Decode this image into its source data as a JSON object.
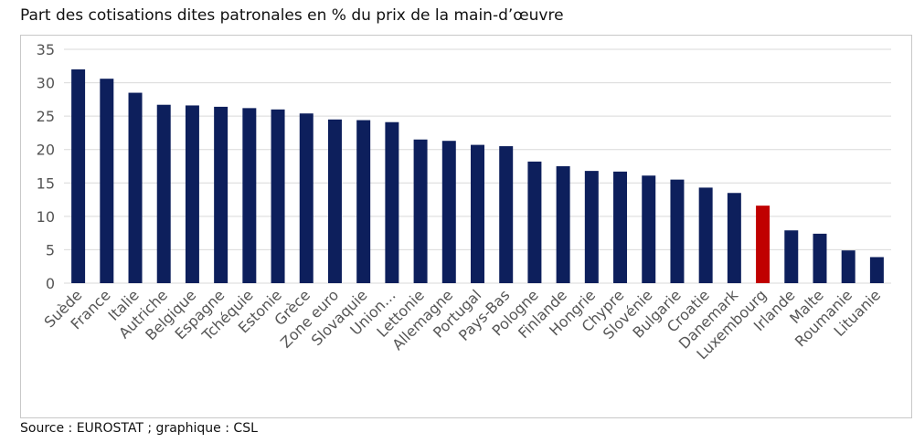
{
  "title": "Part des cotisations dites patronales en % du prix de la main-d’œuvre",
  "source": "Source : EUROSTAT ; graphique : CSL",
  "chart_data": {
    "type": "bar",
    "title": "Part des cotisations dites patronales en % du prix de la main-d’œuvre",
    "xlabel": "",
    "ylabel": "",
    "ylim": [
      0,
      35
    ],
    "yticks": [
      0,
      5,
      10,
      15,
      20,
      25,
      30,
      35
    ],
    "grid": true,
    "categories": [
      "Suède",
      "France",
      "Italie",
      "Autriche",
      "Belgique",
      "Espagne",
      "Tchéquie",
      "Estonie",
      "Grèce",
      "Zone euro",
      "Slovaquie",
      "Union…",
      "Lettonie",
      "Allemagne",
      "Portugal",
      "Pays-Bas",
      "Pologne",
      "Finlande",
      "Hongrie",
      "Chypre",
      "Slovénie",
      "Bulgarie",
      "Croatie",
      "Danemark",
      "Luxembourg",
      "Irlande",
      "Malte",
      "Roumanie",
      "Lituanie"
    ],
    "values": [
      32.0,
      30.6,
      28.5,
      26.7,
      26.6,
      26.4,
      26.2,
      26.0,
      25.4,
      24.5,
      24.4,
      24.1,
      21.5,
      21.3,
      20.7,
      20.5,
      18.2,
      17.5,
      16.8,
      16.7,
      16.1,
      15.5,
      14.3,
      13.5,
      11.6,
      7.9,
      7.4,
      4.9,
      3.9
    ],
    "colors": {
      "default": "#0d1f5c",
      "highlight": "#c00000",
      "grid": "#d9d9d9"
    },
    "highlight_category": "Luxembourg"
  }
}
